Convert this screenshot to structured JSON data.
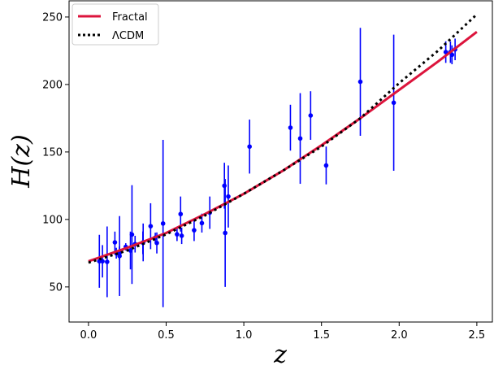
{
  "chart_data": {
    "type": "scatter",
    "xlabel": "z",
    "ylabel": "H(z)",
    "xlim": [
      -0.125,
      2.6
    ],
    "ylim": [
      24,
      262
    ],
    "xticks": [
      0.0,
      0.5,
      1.0,
      1.5,
      2.0,
      2.5
    ],
    "xtick_labels": [
      "0.0",
      "0.5",
      "1.0",
      "1.5",
      "2.0",
      "2.5"
    ],
    "yticks": [
      50,
      100,
      150,
      200,
      250
    ],
    "ytick_labels": [
      "50",
      "100",
      "150",
      "200",
      "250"
    ],
    "grid": false,
    "legend": {
      "placement": "top-left",
      "entries": [
        {
          "label": "Fractal",
          "color": "#dc143c",
          "style": "solid"
        },
        {
          "label": "ΛCDM",
          "color": "#000000",
          "style": "dotted"
        }
      ]
    },
    "series": [
      {
        "name": "Fractal",
        "type": "line",
        "color": "#dc143c",
        "x": [
          0.0,
          0.25,
          0.5,
          0.75,
          1.0,
          1.25,
          1.5,
          1.75,
          2.0,
          2.25,
          2.5
        ],
        "y": [
          69,
          79,
          90,
          104,
          119,
          136,
          155,
          175,
          196,
          217,
          239
        ]
      },
      {
        "name": "ΛCDM",
        "type": "line",
        "color": "#000000",
        "x": [
          0.0,
          0.25,
          0.5,
          0.75,
          1.0,
          1.25,
          1.5,
          1.75,
          2.0,
          2.25,
          2.5
        ],
        "y": [
          68,
          77,
          89,
          103,
          119,
          136,
          154,
          175,
          201,
          225,
          252
        ]
      },
      {
        "name": "Observed H(z)",
        "type": "errorbar",
        "color": "#0000ff",
        "points": [
          {
            "x": 0.07,
            "y": 69,
            "err": 19.6
          },
          {
            "x": 0.09,
            "y": 69,
            "err": 12
          },
          {
            "x": 0.12,
            "y": 68.6,
            "err": 26.2
          },
          {
            "x": 0.17,
            "y": 83,
            "err": 8
          },
          {
            "x": 0.179,
            "y": 75,
            "err": 4
          },
          {
            "x": 0.199,
            "y": 75,
            "err": 5
          },
          {
            "x": 0.2,
            "y": 72.9,
            "err": 29.6
          },
          {
            "x": 0.24,
            "y": 79.7,
            "err": 2.7
          },
          {
            "x": 0.27,
            "y": 77,
            "err": 14
          },
          {
            "x": 0.28,
            "y": 88.8,
            "err": 36.6
          },
          {
            "x": 0.3,
            "y": 81.7,
            "err": 6.2
          },
          {
            "x": 0.35,
            "y": 82.7,
            "err": 8.4
          },
          {
            "x": 0.352,
            "y": 83,
            "err": 14
          },
          {
            "x": 0.4,
            "y": 95,
            "err": 17
          },
          {
            "x": 0.43,
            "y": 86.5,
            "err": 3.7
          },
          {
            "x": 0.44,
            "y": 82.6,
            "err": 7.8
          },
          {
            "x": 0.48,
            "y": 97,
            "err": 62
          },
          {
            "x": 0.57,
            "y": 89,
            "err": 5
          },
          {
            "x": 0.593,
            "y": 104,
            "err": 13
          },
          {
            "x": 0.6,
            "y": 87.9,
            "err": 6.1
          },
          {
            "x": 0.68,
            "y": 92,
            "err": 8
          },
          {
            "x": 0.73,
            "y": 97.3,
            "err": 7
          },
          {
            "x": 0.781,
            "y": 105,
            "err": 12
          },
          {
            "x": 0.875,
            "y": 125,
            "err": 17
          },
          {
            "x": 0.88,
            "y": 90,
            "err": 40
          },
          {
            "x": 0.9,
            "y": 117,
            "err": 23
          },
          {
            "x": 1.037,
            "y": 154,
            "err": 20
          },
          {
            "x": 1.3,
            "y": 168,
            "err": 17
          },
          {
            "x": 1.363,
            "y": 160,
            "err": 33.6
          },
          {
            "x": 1.43,
            "y": 177,
            "err": 18
          },
          {
            "x": 1.53,
            "y": 140,
            "err": 14
          },
          {
            "x": 1.75,
            "y": 202,
            "err": 40
          },
          {
            "x": 1.965,
            "y": 186.5,
            "err": 50.4
          },
          {
            "x": 2.3,
            "y": 224,
            "err": 8
          },
          {
            "x": 2.33,
            "y": 224,
            "err": 8
          },
          {
            "x": 2.34,
            "y": 222,
            "err": 7
          },
          {
            "x": 2.36,
            "y": 226,
            "err": 8
          }
        ]
      }
    ]
  }
}
